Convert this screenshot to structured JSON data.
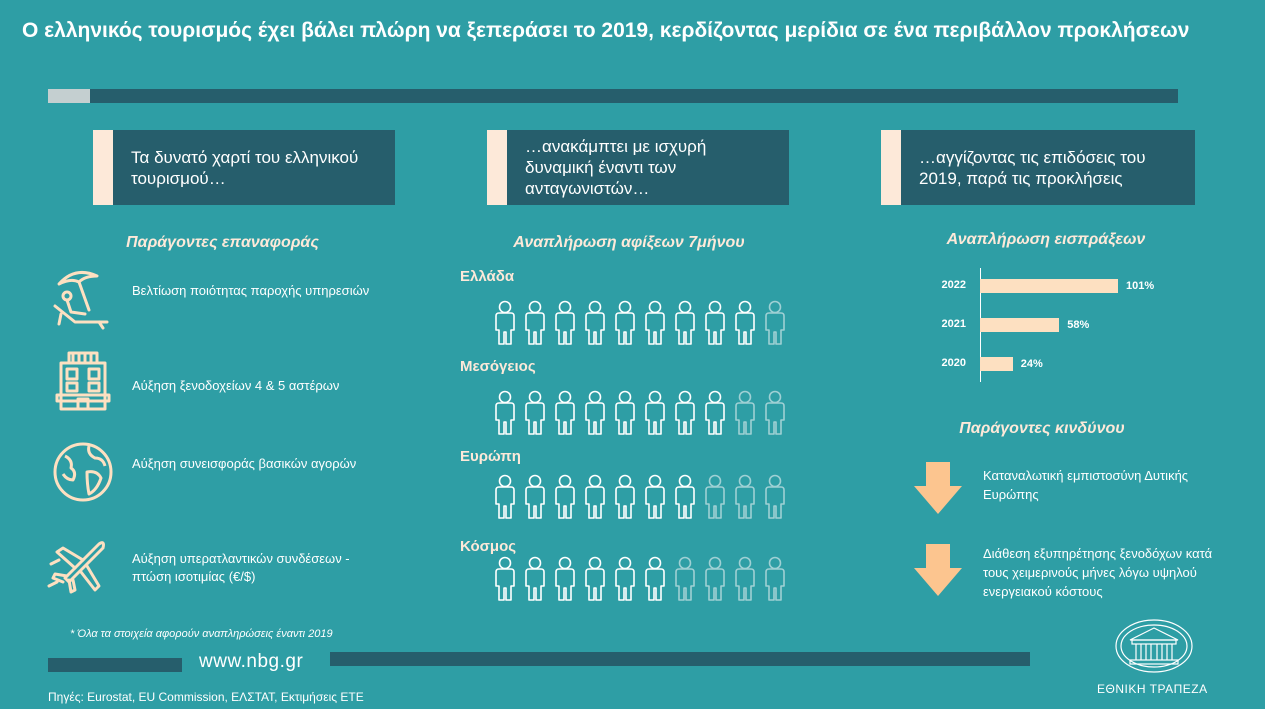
{
  "title": "Ο ελληνικός τουρισμός έχει βάλει πλώρη να ξεπεράσει το 2019, κερδίζοντας μερίδια σε ένα περιβάλλον προκλήσεων",
  "columns": {
    "left_header": "Τα δυνατό χαρτί του ελληνικού τουρισμού…",
    "middle_header": "…ανακάμπτει με ισχυρή δυναμική έναντι των ανταγωνιστών…",
    "right_header": "…αγγίζοντας τις επιδόσεις του 2019, παρά τις προκλήσεις"
  },
  "recovery_factors": {
    "title": "Παράγοντες επαναφοράς",
    "items": [
      {
        "label": "Βελτίωση ποιότητας παροχής υπηρεσιών",
        "icon": "beach-umbrella-icon"
      },
      {
        "label": "Αύξηση ξενοδοχείων 4 & 5 αστέρων",
        "icon": "hotel-icon"
      },
      {
        "label": "Αύξηση συνεισφοράς βασικών αγορών",
        "icon": "globe-icon"
      },
      {
        "label": "Αύξηση υπερατλαντικών συνδέσεων - πτώση ισοτιμίας (€/$)",
        "icon": "airplane-icon"
      }
    ]
  },
  "arrivals": {
    "title": "Αναπλήρωση αφίξεων 7μήνου",
    "total_icons": 10,
    "regions": [
      {
        "label": "Ελλάδα",
        "filled": 9
      },
      {
        "label": "Μεσόγειος",
        "filled": 8
      },
      {
        "label": "Ευρώπη",
        "filled": 7
      },
      {
        "label": "Κόσμος",
        "filled": 6
      }
    ],
    "colors": {
      "filled": "#ffffff",
      "faded": "#9fd0d4"
    }
  },
  "chart_data": {
    "type": "bar",
    "title": "Αναπλήρωση εισπράξεων",
    "categories": [
      "2022",
      "2021",
      "2020"
    ],
    "values": [
      101,
      58,
      24
    ],
    "value_labels": [
      "101%",
      "58%",
      "24%"
    ],
    "orientation": "horizontal",
    "xlim": [
      0,
      101
    ],
    "bar_color": "#fde0c1"
  },
  "risk_factors": {
    "title": "Παράγοντες κινδύνου",
    "items": [
      {
        "label": "Καταναλωτική εμπιστοσύνη Δυτικής Ευρώπης",
        "icon": "down-arrow-icon"
      },
      {
        "label": "Διάθεση εξυπηρέτησης ξενοδόχων κατά τους χειμερινούς μήνες λόγω υψηλού ενεργειακού κόστους",
        "icon": "down-arrow-icon"
      }
    ]
  },
  "footnote": "* Όλα τα στοιχεία αφορούν αναπληρώσεις έναντι 2019",
  "website": "www.nbg.gr",
  "sources": "Πηγές: Eurostat, EU Commission, ΕΛΣΤΑΤ, Εκτιμήσεις ΕΤΕ",
  "bank_name": "ΕΘΝΙΚΗ ΤΡΑΠΕΖΑ",
  "colors": {
    "background": "#2e9ea5",
    "dark_teal": "#265e6c",
    "peach": "#fde9d9",
    "bar": "#fde0c1",
    "arrow": "#fcc58f"
  }
}
